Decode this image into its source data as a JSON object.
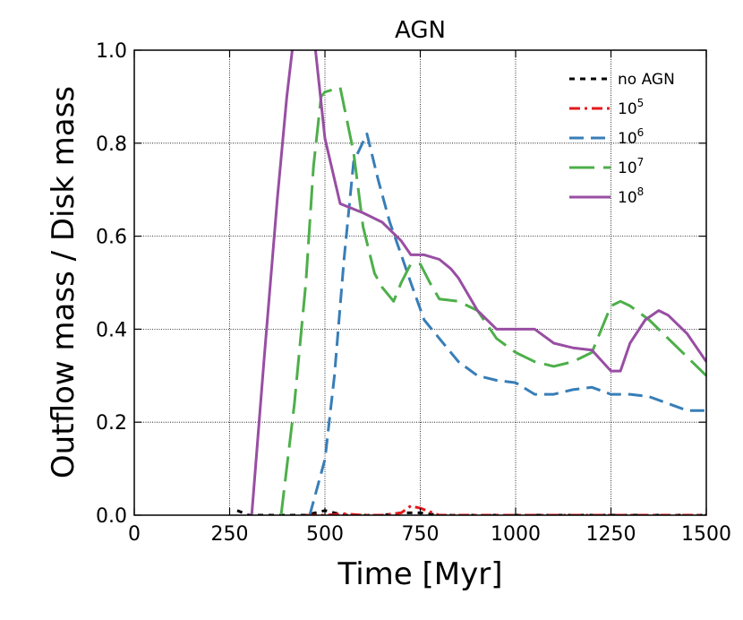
{
  "chart_data": {
    "type": "line",
    "title": "AGN",
    "xlabel": "Time [Myr]",
    "ylabel": "Outflow mass / Disk mass",
    "xlim": [
      0,
      1500
    ],
    "ylim": [
      0,
      1.0
    ],
    "xticks": [
      0,
      250,
      500,
      750,
      1000,
      1250,
      1500
    ],
    "xtick_labels": [
      "0",
      "250",
      "500",
      "750",
      "1000",
      "1250",
      "1500"
    ],
    "yticks": [
      0.0,
      0.2,
      0.4,
      0.6,
      0.8,
      1.0
    ],
    "ytick_labels": [
      "0.0",
      "0.2",
      "0.4",
      "0.6",
      "0.8",
      "1.0"
    ],
    "grid": true,
    "legend_position": "top-right",
    "series": [
      {
        "name": "no AGN",
        "legend_base": "no AGN",
        "legend_sup": "",
        "color": "#000000",
        "style": "dotted",
        "x": [
          270,
          300,
          350,
          400,
          450,
          500,
          550,
          600,
          650,
          700,
          750,
          800,
          900,
          1000,
          1100,
          1200,
          1300,
          1400,
          1500
        ],
        "y": [
          0.01,
          0.0,
          0.0,
          0.0,
          0.0,
          0.01,
          0.0,
          0.0,
          0.0,
          0.005,
          0.005,
          0.0,
          0.0,
          0.0,
          0.0,
          0.0,
          0.0,
          0.0,
          0.0
        ]
      },
      {
        "name": "10^5",
        "legend_base": "10",
        "legend_sup": "5",
        "color": "#e41a1c",
        "style": "dashdot",
        "x": [
          450,
          500,
          550,
          600,
          650,
          700,
          725,
          750,
          800,
          900,
          1000,
          1100,
          1200,
          1300,
          1400,
          1500
        ],
        "y": [
          0.0,
          0.0,
          0.003,
          0.0,
          0.0,
          0.005,
          0.02,
          0.015,
          0.0,
          0.0,
          0.0,
          0.0,
          0.0,
          0.0,
          0.0,
          0.0
        ]
      },
      {
        "name": "10^6",
        "legend_base": "10",
        "legend_sup": "6",
        "color": "#377eb8",
        "style": "dashed",
        "x": [
          460,
          500,
          525,
          550,
          575,
          610,
          640,
          670,
          700,
          725,
          760,
          800,
          850,
          900,
          950,
          1000,
          1050,
          1100,
          1150,
          1200,
          1250,
          1300,
          1350,
          1400,
          1450,
          1500
        ],
        "y": [
          0.0,
          0.12,
          0.3,
          0.55,
          0.76,
          0.82,
          0.72,
          0.63,
          0.56,
          0.5,
          0.42,
          0.38,
          0.33,
          0.3,
          0.29,
          0.285,
          0.26,
          0.26,
          0.27,
          0.275,
          0.26,
          0.26,
          0.255,
          0.24,
          0.225,
          0.225
        ]
      },
      {
        "name": "10^7",
        "legend_base": "10",
        "legend_sup": "7",
        "color": "#4daf4a",
        "style": "longdash",
        "x": [
          385,
          420,
          450,
          470,
          490,
          500,
          540,
          575,
          600,
          630,
          650,
          680,
          700,
          725,
          750,
          775,
          800,
          850,
          900,
          950,
          1000,
          1050,
          1100,
          1150,
          1200,
          1250,
          1275,
          1300,
          1350,
          1400,
          1450,
          1500
        ],
        "y": [
          0.0,
          0.24,
          0.5,
          0.75,
          0.9,
          0.91,
          0.92,
          0.78,
          0.62,
          0.52,
          0.49,
          0.46,
          0.5,
          0.54,
          0.54,
          0.5,
          0.465,
          0.46,
          0.44,
          0.38,
          0.35,
          0.33,
          0.32,
          0.33,
          0.35,
          0.45,
          0.46,
          0.45,
          0.42,
          0.38,
          0.34,
          0.3
        ]
      },
      {
        "name": "10^8",
        "legend_base": "10",
        "legend_sup": "8",
        "color": "#984ea3",
        "style": "solid",
        "x": [
          308,
          340,
          375,
          400,
          420,
          470,
          500,
          540,
          600,
          650,
          700,
          725,
          760,
          800,
          830,
          850,
          900,
          950,
          1000,
          1050,
          1100,
          1150,
          1200,
          1250,
          1275,
          1300,
          1340,
          1375,
          1400,
          1450,
          1500
        ],
        "y": [
          0.0,
          0.33,
          0.68,
          0.9,
          1.04,
          1.04,
          0.81,
          0.67,
          0.65,
          0.63,
          0.59,
          0.56,
          0.56,
          0.55,
          0.53,
          0.51,
          0.44,
          0.4,
          0.4,
          0.4,
          0.37,
          0.36,
          0.355,
          0.31,
          0.31,
          0.37,
          0.42,
          0.44,
          0.43,
          0.39,
          0.33
        ]
      }
    ]
  }
}
